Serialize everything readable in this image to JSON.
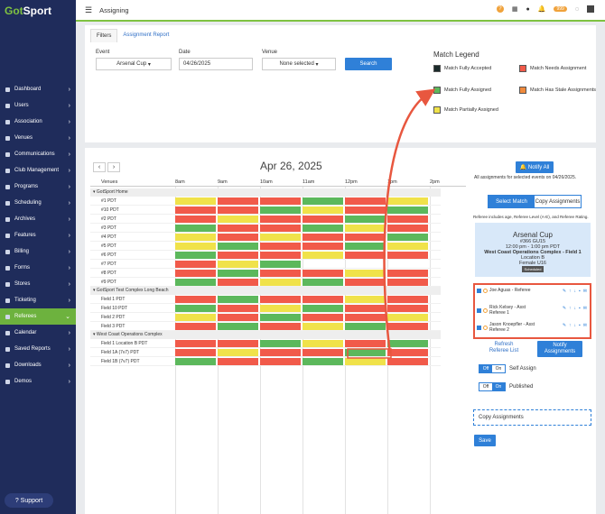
{
  "app": {
    "brand_a": "Got",
    "brand_b": "Sport",
    "page_title": "Assigning",
    "notif_badge": "999"
  },
  "sidebar": {
    "items": [
      {
        "label": "Dashboard"
      },
      {
        "label": "Users"
      },
      {
        "label": "Association"
      },
      {
        "label": "Venues"
      },
      {
        "label": "Communications"
      },
      {
        "label": "Club Management"
      },
      {
        "label": "Programs"
      },
      {
        "label": "Scheduling"
      },
      {
        "label": "Archives"
      },
      {
        "label": "Features"
      },
      {
        "label": "Billing"
      },
      {
        "label": "Forms"
      },
      {
        "label": "Stores"
      },
      {
        "label": "Ticketing"
      },
      {
        "label": "Referees",
        "active": true
      },
      {
        "label": "Calendar"
      },
      {
        "label": "Saved Reports"
      },
      {
        "label": "Downloads"
      },
      {
        "label": "Demos"
      }
    ],
    "support": "Support"
  },
  "filters": {
    "tab_filters": "Filters",
    "tab_report": "Assignment Report",
    "event_label": "Event",
    "event_value": "Arsenal Cup",
    "date_label": "Date",
    "date_value": "04/26/2025",
    "venue_label": "Venue",
    "venue_value": "None selected",
    "search": "Search"
  },
  "legend": {
    "title": "Match Legend",
    "items": [
      {
        "label": "Match Fully Accepted",
        "color": "#1a2a2a"
      },
      {
        "label": "Match Needs Assignment",
        "color": "#f15a4a"
      },
      {
        "label": "Match Fully Assigned",
        "color": "#5cb85c"
      },
      {
        "label": "Match Has Stale Assignments",
        "color": "#f08a3c"
      },
      {
        "label": "Match Partially Assigned",
        "color": "#f0e24a"
      }
    ]
  },
  "schedule": {
    "date_title": "Apr 26, 2025",
    "venues_header": "Venues",
    "hours": [
      "8am",
      "9am",
      "10am",
      "11am",
      "12pm",
      "1pm",
      "2pm"
    ],
    "groups": [
      {
        "name": "GotSport Home",
        "rows": [
          "#1 PDT",
          "#10 PDT",
          "#2 PDT",
          "#3 PDT",
          "#4 PDT",
          "#5 PDT",
          "#6 PDT",
          "#7 PDT",
          "#8 PDT",
          "#9 PDT"
        ]
      },
      {
        "name": "GotSport Test Complex Long Beach",
        "rows": [
          "Field 1 PDT",
          "Field 10 PDT",
          "Field 2 PDT",
          "Field 3 PDT"
        ]
      },
      {
        "name": "West Coast Operations Complex",
        "rows": [
          "Field 1 Location B PDT",
          "Field 1A (7v7) PDT",
          "Field 1B (7v7) PDT"
        ]
      }
    ]
  },
  "panel": {
    "notify_all": "Notify All",
    "all_assign": "All assignments for selected events on 04/26/2025.",
    "select_match": "Select Match",
    "copy_assign": "Copy Assignments",
    "ref_note": "Referee includes age, Referee Level (A-E), and Referee Rating.",
    "match_title": "Arsenal Cup",
    "match_num": "#366 GU15",
    "match_time": "12:00 pm - 1:00 pm PDT",
    "match_venue": "West Coast Operations Complex - Field 1",
    "match_loc": "Location B",
    "match_div": "Female U16",
    "match_status": "Scheduled",
    "refs": [
      {
        "name": "Joe Aguas - Referee",
        "sub": ""
      },
      {
        "name": "Rick Kelsey - Asst",
        "sub": "Referee 1"
      },
      {
        "name": "Jason Knoepfler - Asst",
        "sub": "Referee 2"
      }
    ],
    "refresh_a": "Refresh",
    "refresh_b": "Referee List",
    "notify_a": "Notify",
    "notify_b": "Assignments",
    "off": "Off",
    "on": "On",
    "self_assign": "Self Assign",
    "published": "Published",
    "copy_placeholder": "Copy Assignments",
    "save": "Save"
  }
}
